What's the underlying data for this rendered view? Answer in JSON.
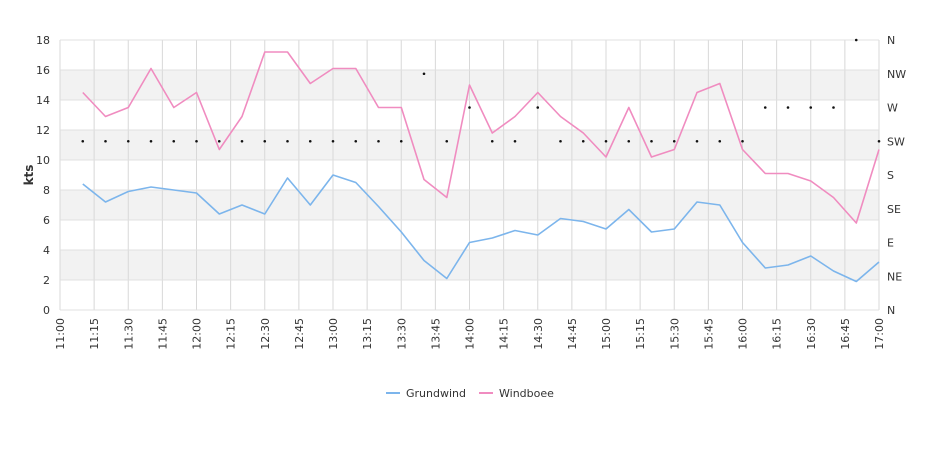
{
  "chart_data": {
    "type": "line",
    "ylabel": "kts",
    "ylim": [
      0,
      18
    ],
    "y_ticks": [
      "0",
      "2",
      "4",
      "6",
      "8",
      "10",
      "12",
      "14",
      "16",
      "18"
    ],
    "right_axis_labels": [
      "N",
      "NE",
      "E",
      "SE",
      "S",
      "SW",
      "W",
      "NW",
      "N"
    ],
    "x_range": [
      "11:00",
      "17:00"
    ],
    "x_ticks": [
      "11:00",
      "11:15",
      "11:30",
      "11:45",
      "12:00",
      "12:15",
      "12:30",
      "12:45",
      "13:00",
      "13:15",
      "13:30",
      "13:45",
      "14:00",
      "14:15",
      "14:30",
      "14:45",
      "15:00",
      "15:15",
      "15:30",
      "15:45",
      "16:00",
      "16:15",
      "16:30",
      "16:45",
      "17:00"
    ],
    "x": [
      "11:10",
      "11:20",
      "11:30",
      "11:40",
      "11:50",
      "12:00",
      "12:10",
      "12:20",
      "12:30",
      "12:40",
      "12:50",
      "13:00",
      "13:10",
      "13:20",
      "13:30",
      "13:40",
      "13:50",
      "14:00",
      "14:10",
      "14:20",
      "14:30",
      "14:40",
      "14:50",
      "15:00",
      "15:10",
      "15:20",
      "15:30",
      "15:40",
      "15:50",
      "16:00",
      "16:10",
      "16:20",
      "16:30",
      "16:40",
      "16:50",
      "17:00"
    ],
    "series": [
      {
        "name": "Grundwind",
        "color": "#7cb5ec",
        "values": [
          8.4,
          7.2,
          7.9,
          8.2,
          8.0,
          7.8,
          6.4,
          7.0,
          6.4,
          8.8,
          7.0,
          9.0,
          8.5,
          6.9,
          5.2,
          3.3,
          2.1,
          4.5,
          4.8,
          5.3,
          5.0,
          6.1,
          5.9,
          5.4,
          6.7,
          5.2,
          5.4,
          7.2,
          7.0,
          4.5,
          2.8,
          3.0,
          3.6,
          2.6,
          1.9,
          3.2
        ]
      },
      {
        "name": "Windboee",
        "color": "#f08cc0",
        "values": [
          14.5,
          12.9,
          13.5,
          16.1,
          13.5,
          14.5,
          10.7,
          12.9,
          17.2,
          17.2,
          15.1,
          16.1,
          16.1,
          13.5,
          13.5,
          8.7,
          7.5,
          15.0,
          11.8,
          12.9,
          14.5,
          12.9,
          11.8,
          10.2,
          13.5,
          10.2,
          10.7,
          14.5,
          15.1,
          10.7,
          9.1,
          9.1,
          8.6,
          7.5,
          5.8,
          10.7
        ]
      }
    ],
    "direction": {
      "unit": "degrees",
      "values": [
        225,
        225,
        225,
        225,
        225,
        225,
        225,
        225,
        225,
        225,
        225,
        225,
        225,
        225,
        225,
        315,
        225,
        270,
        225,
        225,
        270,
        225,
        225,
        225,
        225,
        225,
        225,
        225,
        225,
        225,
        270,
        270,
        270,
        270,
        360,
        225
      ]
    },
    "legend": [
      "Grundwind",
      "Windboee"
    ],
    "legend_position": "bottom-center",
    "grid": true
  }
}
